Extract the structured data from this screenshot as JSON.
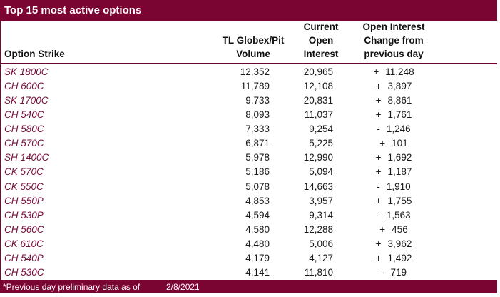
{
  "title": "Top 15 most active options",
  "colors": {
    "maroon": "#7A0533",
    "strike_text": "#7A0F3D",
    "number_text": "#1a1a1a",
    "header_text": "#111111"
  },
  "columns": {
    "strike": "Option Strike",
    "volume_lines": [
      "TL Globex/Pit",
      "Volume"
    ],
    "oi_lines": [
      "Current",
      "Open",
      "Interest"
    ],
    "change_lines": [
      "Open Interest",
      "Change from",
      "previous day"
    ]
  },
  "rows": [
    {
      "strike": "SK 1800C",
      "volume": "12,352",
      "oi": "20,965",
      "sign": "+",
      "change": "11,248"
    },
    {
      "strike": "CH 600C",
      "volume": "11,789",
      "oi": "12,108",
      "sign": "+",
      "change": "3,897"
    },
    {
      "strike": "SK 1700C",
      "volume": "9,733",
      "oi": "20,831",
      "sign": "+",
      "change": "8,861"
    },
    {
      "strike": "CH 540C",
      "volume": "8,093",
      "oi": "11,037",
      "sign": "+",
      "change": "1,761"
    },
    {
      "strike": "CH 580C",
      "volume": "7,333",
      "oi": "9,254",
      "sign": "-",
      "change": "1,246"
    },
    {
      "strike": "CH 570C",
      "volume": "6,871",
      "oi": "5,225",
      "sign": "+",
      "change": "101"
    },
    {
      "strike": "SH 1400C",
      "volume": "5,978",
      "oi": "12,990",
      "sign": "+",
      "change": "1,692"
    },
    {
      "strike": "CK 570C",
      "volume": "5,186",
      "oi": "5,094",
      "sign": "+",
      "change": "1,187"
    },
    {
      "strike": "CK 550C",
      "volume": "5,078",
      "oi": "14,663",
      "sign": "-",
      "change": "1,910"
    },
    {
      "strike": "CH 550P",
      "volume": "4,853",
      "oi": "3,957",
      "sign": "+",
      "change": "1,755"
    },
    {
      "strike": "CH 530P",
      "volume": "4,594",
      "oi": "9,314",
      "sign": "-",
      "change": "1,563"
    },
    {
      "strike": "CH 560C",
      "volume": "4,580",
      "oi": "12,288",
      "sign": "+",
      "change": "456"
    },
    {
      "strike": "CK 610C",
      "volume": "4,480",
      "oi": "5,006",
      "sign": "+",
      "change": "3,962"
    },
    {
      "strike": "CH 540P",
      "volume": "4,179",
      "oi": "4,127",
      "sign": "+",
      "change": "1,492"
    },
    {
      "strike": "CH 530C",
      "volume": "4,141",
      "oi": "11,810",
      "sign": "-",
      "change": "719"
    }
  ],
  "footer": {
    "note": "*Previous day preliminary data as of",
    "date": "2/8/2021"
  },
  "chart_data": {
    "type": "table",
    "title": "Top 15 most active options",
    "columns": [
      "Option Strike",
      "TL Globex/Pit Volume",
      "Current Open Interest",
      "Open Interest Change from previous day"
    ],
    "rows": [
      [
        "SK 1800C",
        12352,
        20965,
        11248
      ],
      [
        "CH 600C",
        11789,
        12108,
        3897
      ],
      [
        "SK 1700C",
        9733,
        20831,
        8861
      ],
      [
        "CH 540C",
        8093,
        11037,
        1761
      ],
      [
        "CH 580C",
        7333,
        9254,
        -1246
      ],
      [
        "CH 570C",
        6871,
        5225,
        101
      ],
      [
        "SH 1400C",
        5978,
        12990,
        1692
      ],
      [
        "CK 570C",
        5186,
        5094,
        1187
      ],
      [
        "CK 550C",
        5078,
        14663,
        -1910
      ],
      [
        "CH 550P",
        4853,
        3957,
        1755
      ],
      [
        "CH 530P",
        4594,
        9314,
        -1563
      ],
      [
        "CH 560C",
        4580,
        12288,
        456
      ],
      [
        "CK 610C",
        4480,
        5006,
        3962
      ],
      [
        "CH 540P",
        4179,
        4127,
        1492
      ],
      [
        "CH 530C",
        4141,
        11810,
        -719
      ]
    ],
    "footnote": "*Previous day preliminary data as of 2/8/2021"
  }
}
